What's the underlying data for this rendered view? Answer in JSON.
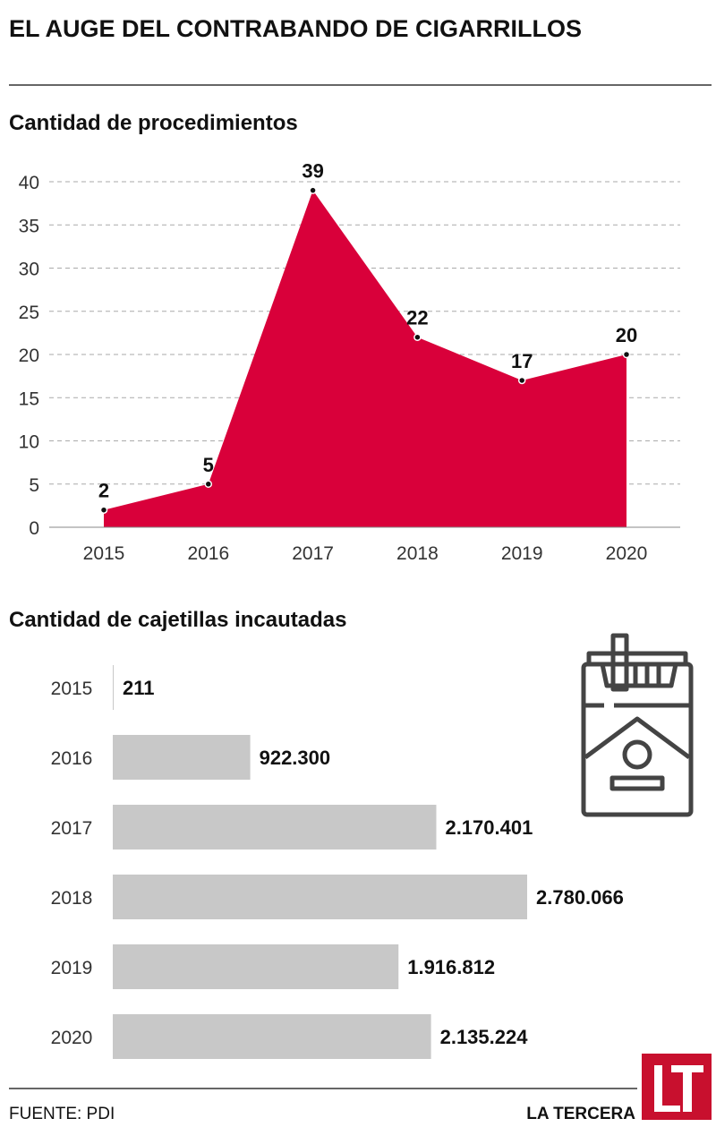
{
  "title": "EL AUGE DEL CONTRABANDO DE CIGARRILLOS",
  "chart_data": [
    {
      "type": "area",
      "title": "Cantidad de procedimientos",
      "categories": [
        "2015",
        "2016",
        "2017",
        "2018",
        "2019",
        "2020"
      ],
      "values": [
        2,
        5,
        39,
        22,
        17,
        20
      ],
      "data_labels": [
        "2",
        "5",
        "39",
        "22",
        "17",
        "20"
      ],
      "yticks": [
        "0",
        "5",
        "10",
        "15",
        "20",
        "25",
        "30",
        "35",
        "40"
      ],
      "ylim": [
        0,
        40
      ],
      "grid": true,
      "color": "#d9003a"
    },
    {
      "type": "bar",
      "orientation": "horizontal",
      "title": "Cantidad de cajetillas incautadas",
      "categories": [
        "2015",
        "2016",
        "2017",
        "2018",
        "2019",
        "2020"
      ],
      "values": [
        211,
        922300,
        2170401,
        2780066,
        1916812,
        2135224
      ],
      "data_labels": [
        "211",
        "922.300",
        "2.170.401",
        "2.780.066",
        "1.916.812",
        "2.135.224"
      ],
      "color": "#c8c8c8"
    }
  ],
  "icon": "cigarette-pack-icon",
  "footer": {
    "source": "FUENTE: PDI",
    "brand": "LA TERCERA",
    "logo": "LT",
    "logo_color": "#c8102e"
  }
}
